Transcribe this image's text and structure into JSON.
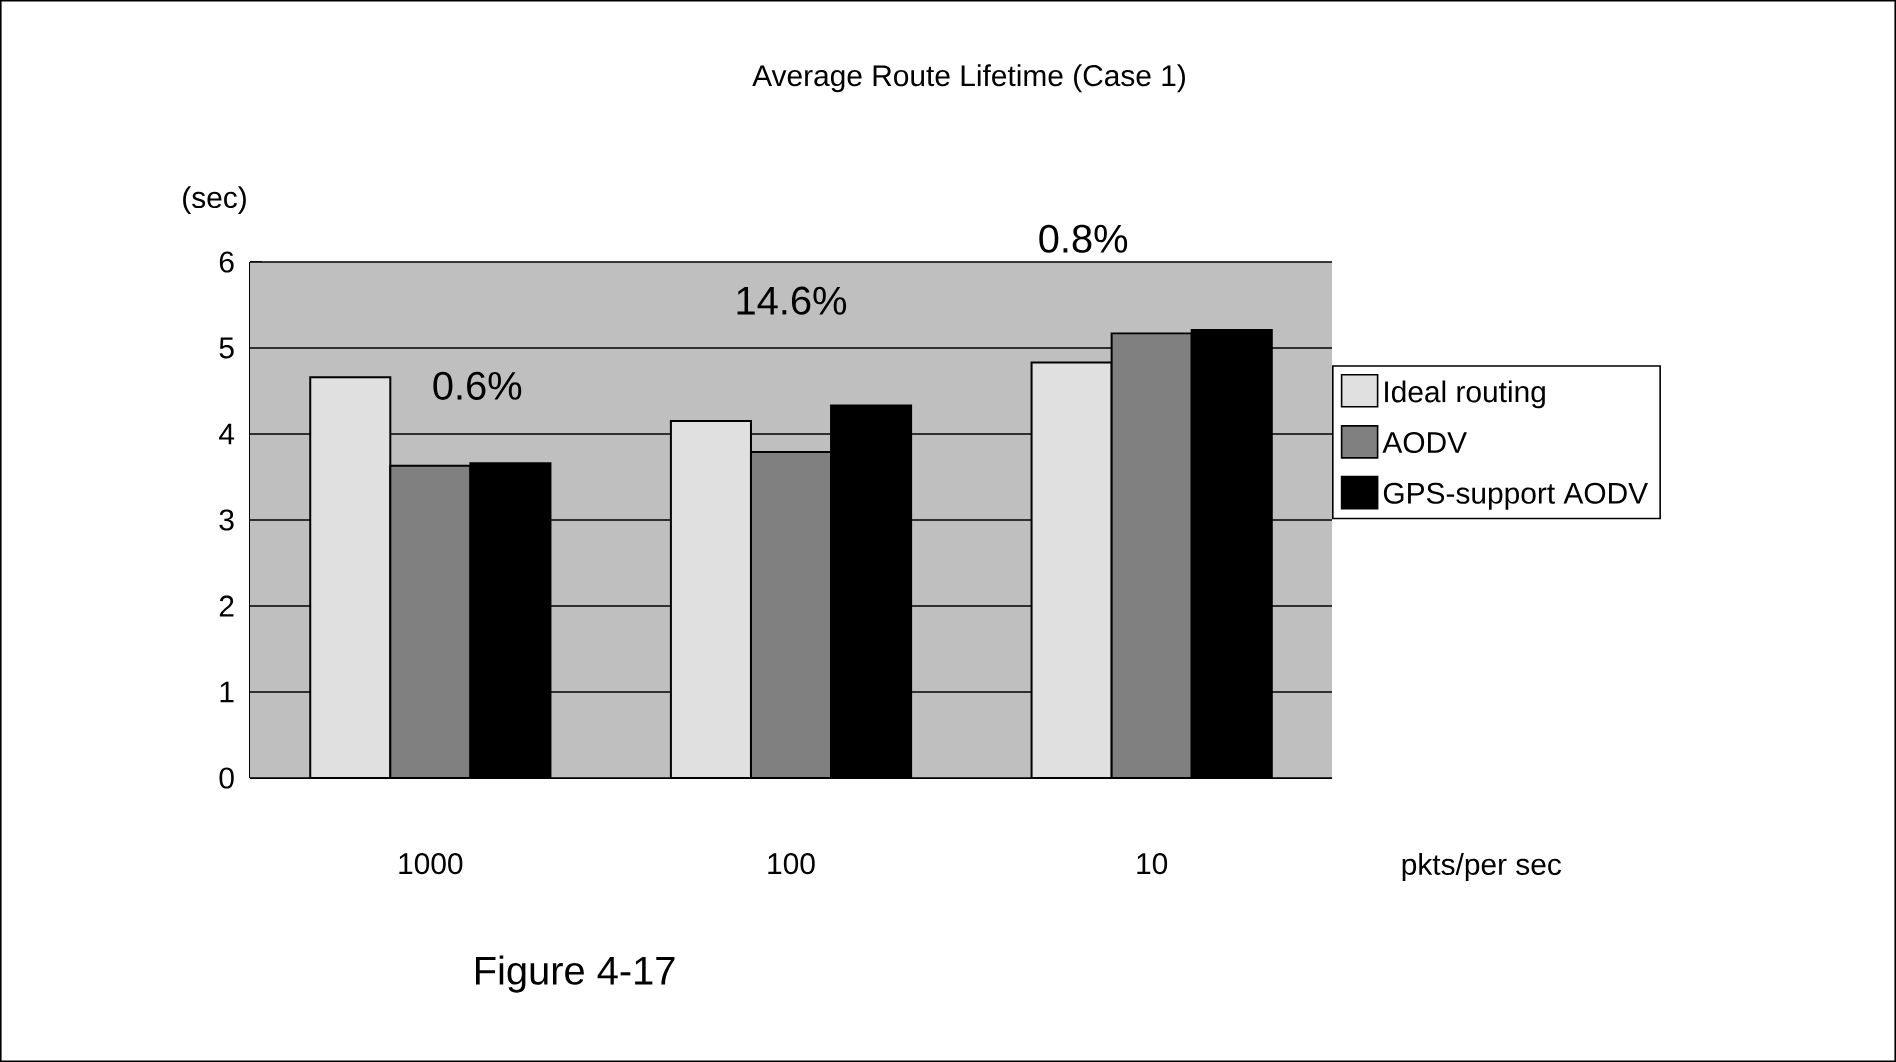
{
  "chart_data": {
    "type": "bar",
    "title": "Average Route Lifetime (Case 1)",
    "xlabel": "pkts/per sec",
    "ylabel": "(sec)",
    "categories": [
      "1000",
      "100",
      "10"
    ],
    "series": [
      {
        "name": "Ideal routing",
        "color": "#e0e0e0",
        "values": [
          4.66,
          4.15,
          4.83
        ]
      },
      {
        "name": "AODV",
        "color": "#808080",
        "values": [
          3.63,
          3.79,
          5.17
        ]
      },
      {
        "name": "GPS-support AODV",
        "color": "#000000",
        "values": [
          3.66,
          4.33,
          5.21
        ]
      }
    ],
    "ylim": [
      0,
      6
    ],
    "yticks": [
      0,
      1,
      2,
      3,
      4,
      5,
      6
    ],
    "grid": "y",
    "legend": "right",
    "annotations": [
      "0.6%",
      "14.6%",
      "0.8%",
      "Figure 4-17"
    ]
  }
}
